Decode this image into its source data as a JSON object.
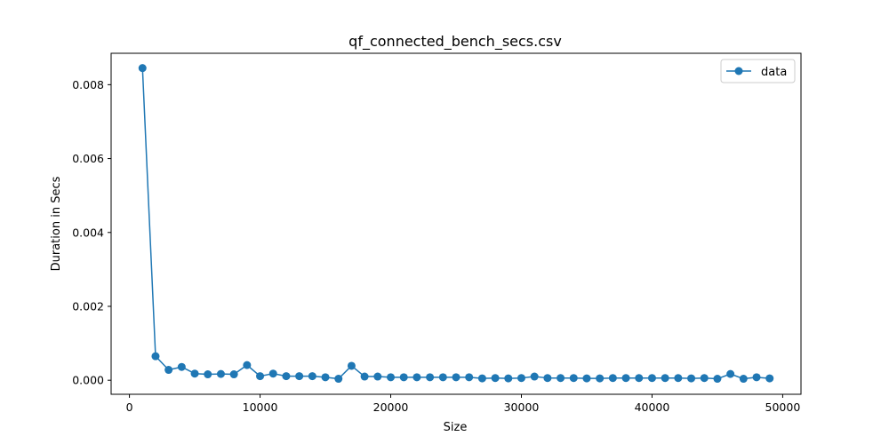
{
  "chart_data": {
    "type": "line",
    "title": "qf_connected_bench_secs.csv",
    "xlabel": "Size",
    "ylabel": "Duration in Secs",
    "xlim": [
      -1400,
      51400
    ],
    "ylim": [
      -0.00038,
      0.00885
    ],
    "xticks": [
      0,
      10000,
      20000,
      30000,
      40000,
      50000
    ],
    "xtick_labels": [
      "0",
      "10000",
      "20000",
      "30000",
      "40000",
      "50000"
    ],
    "yticks": [
      0.0,
      0.002,
      0.004,
      0.006,
      0.008
    ],
    "ytick_labels": [
      "0.000",
      "0.002",
      "0.004",
      "0.006",
      "0.008"
    ],
    "grid": false,
    "legend_position": "top-right",
    "series": [
      {
        "name": "data",
        "color": "#1f77b4",
        "marker": "circle",
        "x": [
          1000,
          2000,
          3000,
          4000,
          5000,
          6000,
          7000,
          8000,
          9000,
          10000,
          11000,
          12000,
          13000,
          14000,
          15000,
          16000,
          17000,
          18000,
          19000,
          20000,
          21000,
          22000,
          23000,
          24000,
          25000,
          26000,
          27000,
          28000,
          29000,
          30000,
          31000,
          32000,
          33000,
          34000,
          35000,
          36000,
          37000,
          38000,
          39000,
          40000,
          41000,
          42000,
          43000,
          44000,
          45000,
          46000,
          47000,
          48000,
          49000
        ],
        "y": [
          0.00845,
          0.00065,
          0.00028,
          0.00036,
          0.00018,
          0.00016,
          0.00017,
          0.00016,
          0.00041,
          0.00011,
          0.00018,
          0.00011,
          0.00011,
          0.00011,
          8e-05,
          4e-05,
          0.00039,
          0.0001,
          0.0001,
          8e-05,
          8e-05,
          8e-05,
          8e-05,
          8e-05,
          8e-05,
          8e-05,
          5e-05,
          6e-05,
          5e-05,
          6e-05,
          0.0001,
          6e-05,
          6e-05,
          6e-05,
          5e-05,
          5e-05,
          6e-05,
          6e-05,
          6e-05,
          6e-05,
          6e-05,
          6e-05,
          5e-05,
          6e-05,
          4e-05,
          0.00017,
          4e-05,
          8e-05,
          5e-05
        ]
      }
    ]
  }
}
